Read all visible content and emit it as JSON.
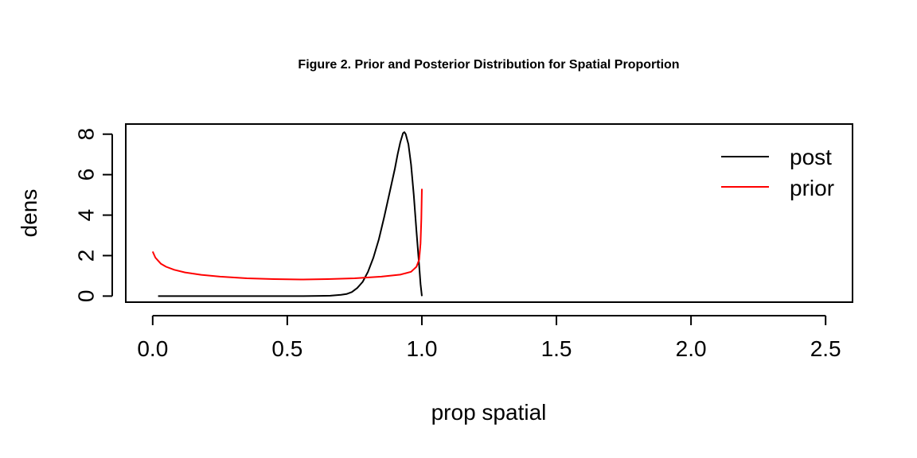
{
  "chart_data": {
    "type": "line",
    "title": "Figure 2. Prior and Posterior Distribution for Spatial Proportion",
    "xlabel": "prop spatial",
    "ylabel": "dens",
    "xlim": [
      -0.1,
      2.6
    ],
    "ylim": [
      -0.3,
      8.5
    ],
    "x_ticks": [
      0.0,
      0.5,
      1.0,
      1.5,
      2.0,
      2.5
    ],
    "x_tick_labels": [
      "0.0",
      "0.5",
      "1.0",
      "1.5",
      "2.0",
      "2.5"
    ],
    "y_ticks": [
      0,
      2,
      4,
      6,
      8
    ],
    "y_tick_labels": [
      "0",
      "2",
      "4",
      "6",
      "8"
    ],
    "grid": false,
    "legend_position": "top-right",
    "series": [
      {
        "name": "post",
        "color": "#000000",
        "points": [
          [
            0.02,
            0.0
          ],
          [
            0.2,
            0.0
          ],
          [
            0.4,
            0.0
          ],
          [
            0.55,
            0.0
          ],
          [
            0.62,
            0.01
          ],
          [
            0.66,
            0.02
          ],
          [
            0.7,
            0.06
          ],
          [
            0.72,
            0.1
          ],
          [
            0.74,
            0.2
          ],
          [
            0.76,
            0.4
          ],
          [
            0.78,
            0.7
          ],
          [
            0.8,
            1.2
          ],
          [
            0.82,
            1.9
          ],
          [
            0.84,
            2.8
          ],
          [
            0.86,
            3.9
          ],
          [
            0.88,
            5.1
          ],
          [
            0.9,
            6.3
          ],
          [
            0.91,
            7.0
          ],
          [
            0.92,
            7.6
          ],
          [
            0.93,
            8.05
          ],
          [
            0.935,
            8.1
          ],
          [
            0.94,
            8.0
          ],
          [
            0.95,
            7.5
          ],
          [
            0.96,
            6.5
          ],
          [
            0.97,
            5.0
          ],
          [
            0.98,
            3.2
          ],
          [
            0.99,
            1.5
          ],
          [
            0.995,
            0.6
          ],
          [
            1.0,
            0.0
          ]
        ]
      },
      {
        "name": "prior",
        "color": "#ff0000",
        "points": [
          [
            0.0,
            2.2
          ],
          [
            0.01,
            1.9
          ],
          [
            0.02,
            1.75
          ],
          [
            0.03,
            1.6
          ],
          [
            0.05,
            1.45
          ],
          [
            0.08,
            1.3
          ],
          [
            0.12,
            1.17
          ],
          [
            0.18,
            1.05
          ],
          [
            0.25,
            0.96
          ],
          [
            0.35,
            0.88
          ],
          [
            0.45,
            0.84
          ],
          [
            0.55,
            0.82
          ],
          [
            0.65,
            0.84
          ],
          [
            0.75,
            0.88
          ],
          [
            0.85,
            0.96
          ],
          [
            0.92,
            1.06
          ],
          [
            0.96,
            1.2
          ],
          [
            0.98,
            1.45
          ],
          [
            0.99,
            1.8
          ],
          [
            0.995,
            2.6
          ],
          [
            0.998,
            3.8
          ],
          [
            1.0,
            5.3
          ]
        ]
      }
    ]
  }
}
